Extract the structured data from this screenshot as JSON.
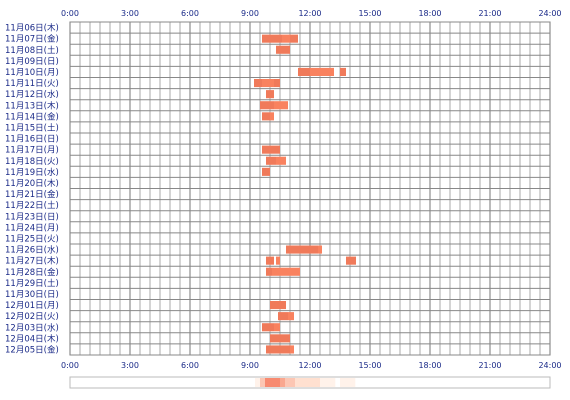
{
  "chart_data": {
    "type": "timeline",
    "x_ticks": [
      "0:00",
      "3:00",
      "6:00",
      "9:00",
      "12:00",
      "15:00",
      "18:00",
      "21:00",
      "24:00"
    ],
    "xlim": [
      0,
      24
    ],
    "grid": true,
    "rows": [
      {
        "label": "11月06日(木)",
        "segments": []
      },
      {
        "label": "11月07日(金)",
        "segments": [
          [
            9.6,
            10.6
          ],
          [
            10.6,
            11.0
          ],
          [
            11.0,
            11.4
          ]
        ]
      },
      {
        "label": "11月08日(土)",
        "segments": [
          [
            10.3,
            11.0
          ]
        ]
      },
      {
        "label": "11月09日(日)",
        "segments": []
      },
      {
        "label": "11月10日(月)",
        "segments": [
          [
            11.4,
            12.0
          ],
          [
            12.0,
            13.2
          ],
          [
            13.5,
            13.8
          ]
        ]
      },
      {
        "label": "11月11日(火)",
        "segments": [
          [
            9.2,
            9.6
          ],
          [
            9.6,
            10.2
          ],
          [
            10.2,
            10.5
          ]
        ]
      },
      {
        "label": "11月12日(水)",
        "segments": [
          [
            9.8,
            10.2
          ]
        ]
      },
      {
        "label": "11月13日(木)",
        "segments": [
          [
            9.5,
            10.2
          ],
          [
            10.2,
            10.9
          ]
        ]
      },
      {
        "label": "11月14日(金)",
        "segments": [
          [
            9.6,
            10.0
          ],
          [
            10.0,
            10.2
          ]
        ]
      },
      {
        "label": "11月15日(土)",
        "segments": []
      },
      {
        "label": "11月16日(日)",
        "segments": []
      },
      {
        "label": "11月17日(月)",
        "segments": [
          [
            9.6,
            10.5
          ]
        ]
      },
      {
        "label": "11月18日(火)",
        "segments": [
          [
            9.8,
            10.3
          ],
          [
            10.3,
            10.8
          ]
        ]
      },
      {
        "label": "11月19日(水)",
        "segments": [
          [
            9.6,
            10.0
          ]
        ]
      },
      {
        "label": "11月20日(木)",
        "segments": []
      },
      {
        "label": "11月21日(金)",
        "segments": []
      },
      {
        "label": "11月22日(土)",
        "segments": []
      },
      {
        "label": "11月23日(日)",
        "segments": []
      },
      {
        "label": "11月24日(月)",
        "segments": []
      },
      {
        "label": "11月25日(火)",
        "segments": []
      },
      {
        "label": "11月26日(水)",
        "segments": [
          [
            10.8,
            12.4
          ],
          [
            12.4,
            12.6
          ]
        ]
      },
      {
        "label": "11月27日(木)",
        "segments": [
          [
            9.8,
            10.2
          ],
          [
            10.3,
            10.5
          ],
          [
            13.8,
            14.3
          ]
        ]
      },
      {
        "label": "11月28日(金)",
        "segments": [
          [
            9.8,
            10.1
          ],
          [
            10.1,
            11.5
          ]
        ]
      },
      {
        "label": "11月29日(土)",
        "segments": []
      },
      {
        "label": "11月30日(日)",
        "segments": []
      },
      {
        "label": "12月01日(月)",
        "segments": [
          [
            10.0,
            10.8
          ]
        ]
      },
      {
        "label": "12月02日(火)",
        "segments": [
          [
            10.4,
            10.9
          ],
          [
            10.9,
            11.2
          ]
        ]
      },
      {
        "label": "12月03日(水)",
        "segments": [
          [
            9.6,
            10.2
          ],
          [
            10.2,
            10.5
          ]
        ]
      },
      {
        "label": "12月04日(木)",
        "segments": [
          [
            10.0,
            11.0
          ]
        ]
      },
      {
        "label": "12月05日(金)",
        "segments": [
          [
            9.8,
            11.0
          ],
          [
            11.0,
            11.2
          ]
        ]
      }
    ],
    "segment_colors": [
      "#f07a5a",
      "#f9825f"
    ],
    "heatbar_colors": [
      "#fff2ea",
      "#ffe0d0",
      "#fcc6b3",
      "#f9a78f",
      "#f78a70"
    ]
  }
}
